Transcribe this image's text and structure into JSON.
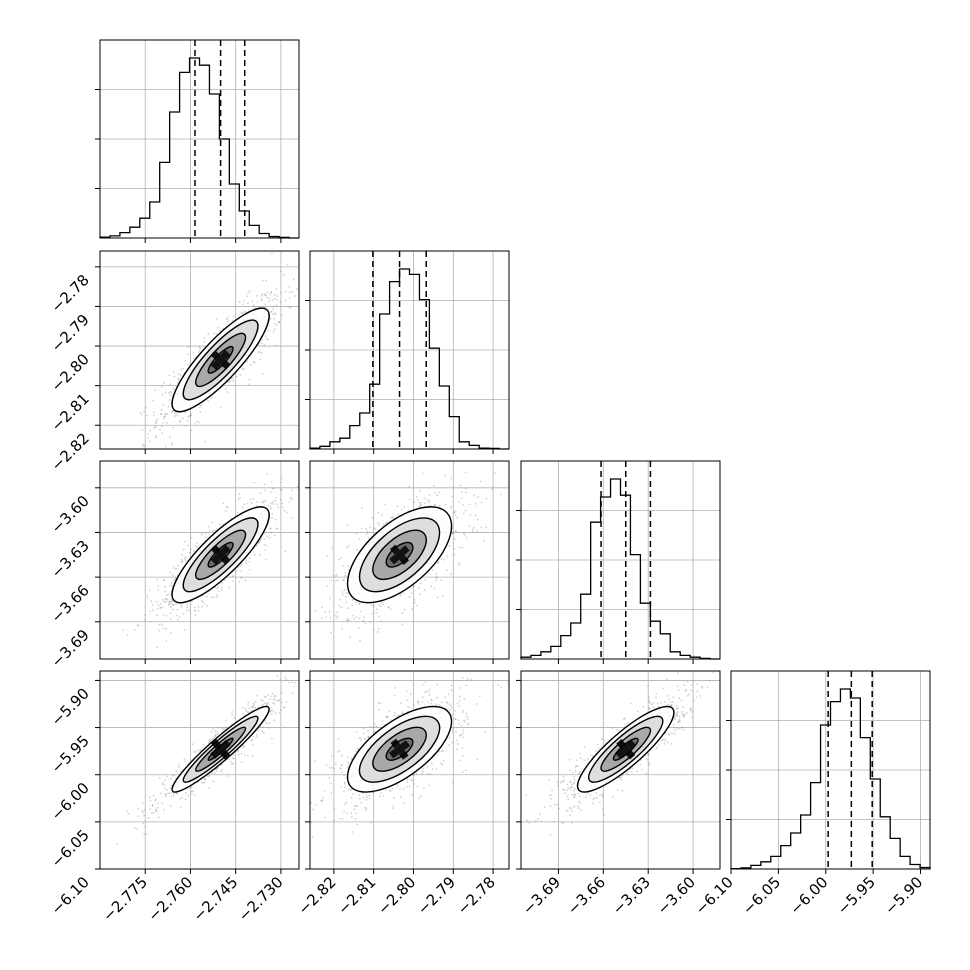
{
  "chart_data": {
    "type": "corner",
    "grid": true,
    "parameters": [
      {
        "range": [
          -2.79,
          -2.724
        ],
        "median": -2.75,
        "q16": -2.7585,
        "q84": -2.742,
        "ticks": [
          -2.775,
          -2.76,
          -2.745,
          -2.73
        ],
        "tick_labels": [
          "−2.775",
          "−2.760",
          "−2.745",
          "−2.730"
        ]
      },
      {
        "range": [
          -2.826,
          -2.776
        ],
        "median": -2.8035,
        "q16": -2.8102,
        "q84": -2.7968,
        "ticks": [
          -2.82,
          -2.81,
          -2.8,
          -2.79,
          -2.78
        ],
        "tick_labels": [
          "−2.82",
          "−2.81",
          "−2.80",
          "−2.79",
          "−2.78"
        ]
      },
      {
        "range": [
          -3.715,
          -3.582
        ],
        "median": -3.645,
        "q16": -3.6615,
        "q84": -3.6285,
        "ticks": [
          -3.69,
          -3.66,
          -3.63,
          -3.6
        ],
        "tick_labels": [
          "−3.69",
          "−3.66",
          "−3.63",
          "−3.60"
        ]
      },
      {
        "range": [
          -6.1,
          -5.89
        ],
        "median": -5.973,
        "q16": -5.9975,
        "q84": -5.951,
        "ticks": [
          -6.1,
          -6.05,
          -6.0,
          -5.95,
          -5.9
        ],
        "tick_labels": [
          "−6.10",
          "−6.05",
          "−6.00",
          "−5.95",
          "−5.90"
        ]
      }
    ],
    "histograms": [
      [
        0.005,
        0.012,
        0.03,
        0.06,
        0.11,
        0.2,
        0.42,
        0.7,
        0.92,
        1.0,
        0.96,
        0.8,
        0.55,
        0.3,
        0.15,
        0.07,
        0.025,
        0.008,
        0.003,
        0
      ],
      [
        0.005,
        0.015,
        0.04,
        0.06,
        0.13,
        0.2,
        0.36,
        0.75,
        0.93,
        1.0,
        0.97,
        0.83,
        0.56,
        0.35,
        0.18,
        0.04,
        0.02,
        0.005,
        0.003,
        0
      ],
      [
        0.01,
        0.02,
        0.04,
        0.07,
        0.13,
        0.2,
        0.36,
        0.76,
        0.9,
        1.0,
        0.91,
        0.58,
        0.31,
        0.21,
        0.14,
        0.04,
        0.02,
        0.01,
        0.003,
        0
      ],
      [
        0.002,
        0.006,
        0.02,
        0.04,
        0.07,
        0.13,
        0.2,
        0.3,
        0.48,
        0.8,
        0.93,
        1.0,
        0.95,
        0.73,
        0.5,
        0.29,
        0.17,
        0.07,
        0.025,
        0.008
      ]
    ],
    "pairs": [
      {
        "x": 0,
        "y": 1,
        "rho": 0.85
      },
      {
        "x": 0,
        "y": 2,
        "rho": 0.83
      },
      {
        "x": 1,
        "y": 2,
        "rho": 0.6
      },
      {
        "x": 0,
        "y": 3,
        "rho": 0.94
      },
      {
        "x": 1,
        "y": 3,
        "rho": 0.65
      },
      {
        "x": 2,
        "y": 3,
        "rho": 0.86
      }
    ],
    "contour_levels": [
      0.5,
      1.0,
      1.5
    ],
    "colors": {
      "contour": "#000000",
      "scatter": "#7f7f7f",
      "grid": "#b0b0b0",
      "quantile_line": "#000000"
    }
  }
}
